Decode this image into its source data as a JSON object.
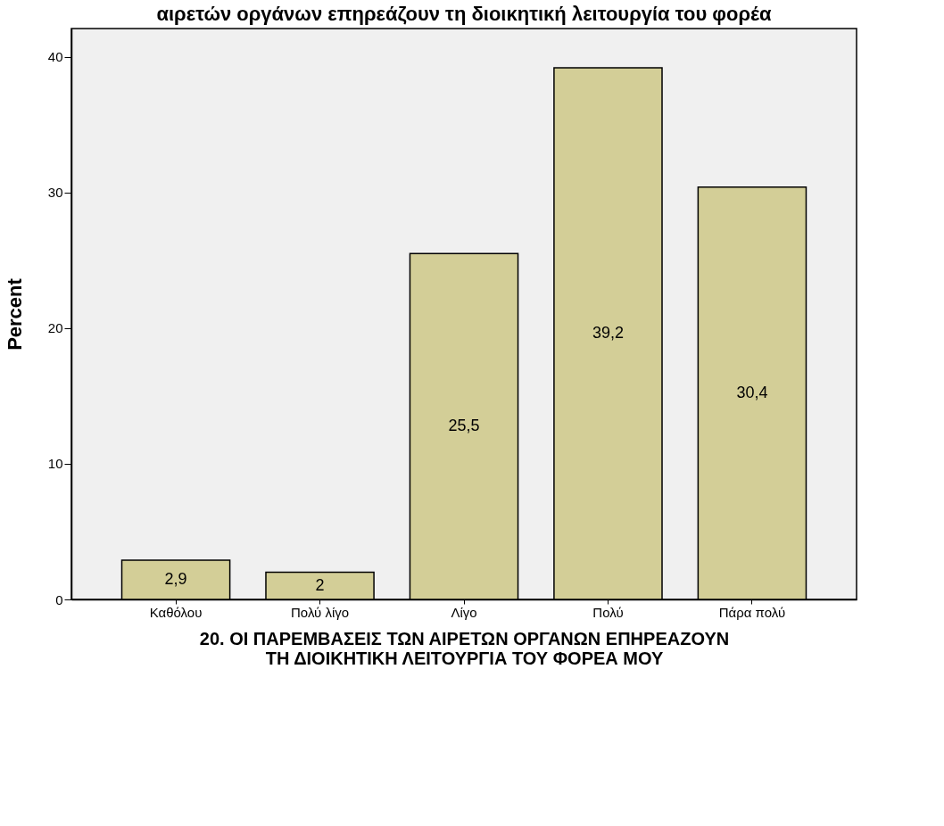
{
  "chart_data": {
    "type": "bar",
    "title": "αιρετών οργάνων επηρεάζουν τη διοικητική λειτουργία του φορέα",
    "xlabel": "20. ΟΙ ΠΑΡΕΜΒΑΣΕΙΣ ΤΩΝ ΑΙΡΕΤΩΝ ΟΡΓΑΝΩΝ ΕΠΗΡΕΑΖΟΥΝ ΤΗ ΔΙΟΙΚΗΤΙΚΗ ΛΕΙΤΟΥΡΓΙΑ ΤΟΥ ΦΟΡΕΑ ΜΟΥ",
    "ylabel": "Percent",
    "categories": [
      "Καθόλου",
      "Πολύ λίγο",
      "Λίγο",
      "Πολύ",
      "Πάρα πολύ"
    ],
    "values": [
      2.9,
      2,
      25.5,
      39.2,
      30.4
    ],
    "value_labels": [
      "2,9",
      "2",
      "25,5",
      "39,2",
      "30,4"
    ],
    "color": "#d3ce97",
    "ylim": [
      0,
      42.1
    ],
    "yticks": [
      0,
      10,
      20,
      30,
      40
    ],
    "grid": false
  }
}
